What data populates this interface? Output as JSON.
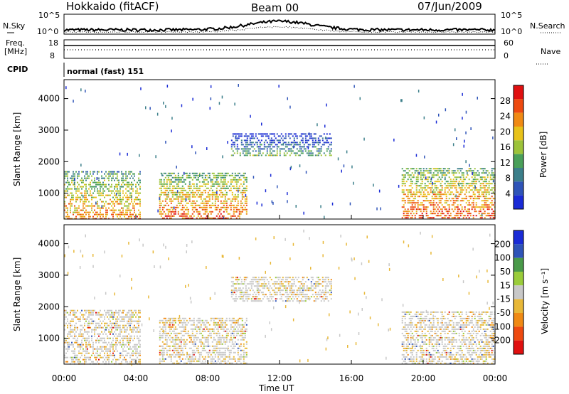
{
  "header": {
    "station": "Hokkaido (fitACF)",
    "beam": "Beam 00",
    "date": "07/Jun/2009"
  },
  "noise_panel": {
    "left_label": "N.Sky",
    "left_ticks": [
      "10^5",
      "10^0"
    ],
    "right_label": "N.Search",
    "right_ticks": [
      "10^5",
      "10^0"
    ]
  },
  "freq_panel": {
    "left_label_1": "Freq.",
    "left_label_2": "[MHz]",
    "left_ticks": [
      "18",
      "8"
    ],
    "right_label": "Nave",
    "right_ticks": [
      "60",
      "0"
    ]
  },
  "cpid": {
    "label": "CPID",
    "value": "normal (fast) 151"
  },
  "colors": {
    "power": [
      "#1a2bd6",
      "#2f54b8",
      "#3c7f8a",
      "#4aa05a",
      "#9dc33a",
      "#e8c21a",
      "#f08a14",
      "#ee4a10",
      "#e01010"
    ],
    "velocity": [
      "#e01010",
      "#ee4a10",
      "#f08a14",
      "#e8b838",
      "#c8c8c8",
      "#9acc3a",
      "#4a9a4a",
      "#2f54b8",
      "#1a2bd6"
    ]
  },
  "chart_data": [
    {
      "type": "heatmap",
      "quantity": "power",
      "ylabel": "Slant Range [km]",
      "xlabel": "Time UT",
      "x_ticks": [
        "00:00",
        "04:00",
        "08:00",
        "12:00",
        "16:00",
        "20:00",
        "00:00"
      ],
      "xlim_hours": [
        0,
        24
      ],
      "y_ticks": [
        1000,
        2000,
        3000,
        4000
      ],
      "ylim_km": [
        180,
        4600
      ],
      "colorbar": {
        "label": "Power [dB]",
        "ticks": [
          4,
          8,
          12,
          16,
          20,
          24,
          28
        ],
        "range": [
          0,
          32
        ]
      },
      "echo_regions": [
        {
          "t0": 0.0,
          "t1": 4.2,
          "r0": 180,
          "r1": 1700,
          "mean_db": 18
        },
        {
          "t0": 5.3,
          "t1": 10.2,
          "r0": 180,
          "r1": 1650,
          "mean_db": 20
        },
        {
          "t0": 9.3,
          "t1": 14.9,
          "r0": 2200,
          "r1": 2900,
          "mean_db": 6
        },
        {
          "t0": 18.8,
          "t1": 24.0,
          "r0": 180,
          "r1": 1800,
          "mean_db": 21
        }
      ]
    },
    {
      "type": "heatmap",
      "quantity": "velocity",
      "ylabel": "Slant Range [km]",
      "xlabel": "Time UT",
      "x_ticks": [
        "00:00",
        "04:00",
        "08:00",
        "12:00",
        "16:00",
        "20:00",
        "00:00"
      ],
      "xlim_hours": [
        0,
        24
      ],
      "y_ticks": [
        1000,
        2000,
        3000,
        4000
      ],
      "ylim_km": [
        180,
        4600
      ],
      "colorbar": {
        "label": "Velocity [m s⁻¹]",
        "ticks": [
          200,
          100,
          50,
          15,
          -15,
          -50,
          -100,
          -200
        ]
      },
      "echo_regions": [
        {
          "t0": 0.0,
          "t1": 4.2,
          "r0": 180,
          "r1": 1900,
          "mean_v": -5
        },
        {
          "t0": 5.3,
          "t1": 10.2,
          "r0": 180,
          "r1": 1650,
          "mean_v": -20
        },
        {
          "t0": 9.3,
          "t1": 14.9,
          "r0": 2200,
          "r1": 2950,
          "mean_v": -40
        },
        {
          "t0": 18.8,
          "t1": 24.0,
          "r0": 180,
          "r1": 1850,
          "mean_v": 0
        }
      ]
    }
  ]
}
